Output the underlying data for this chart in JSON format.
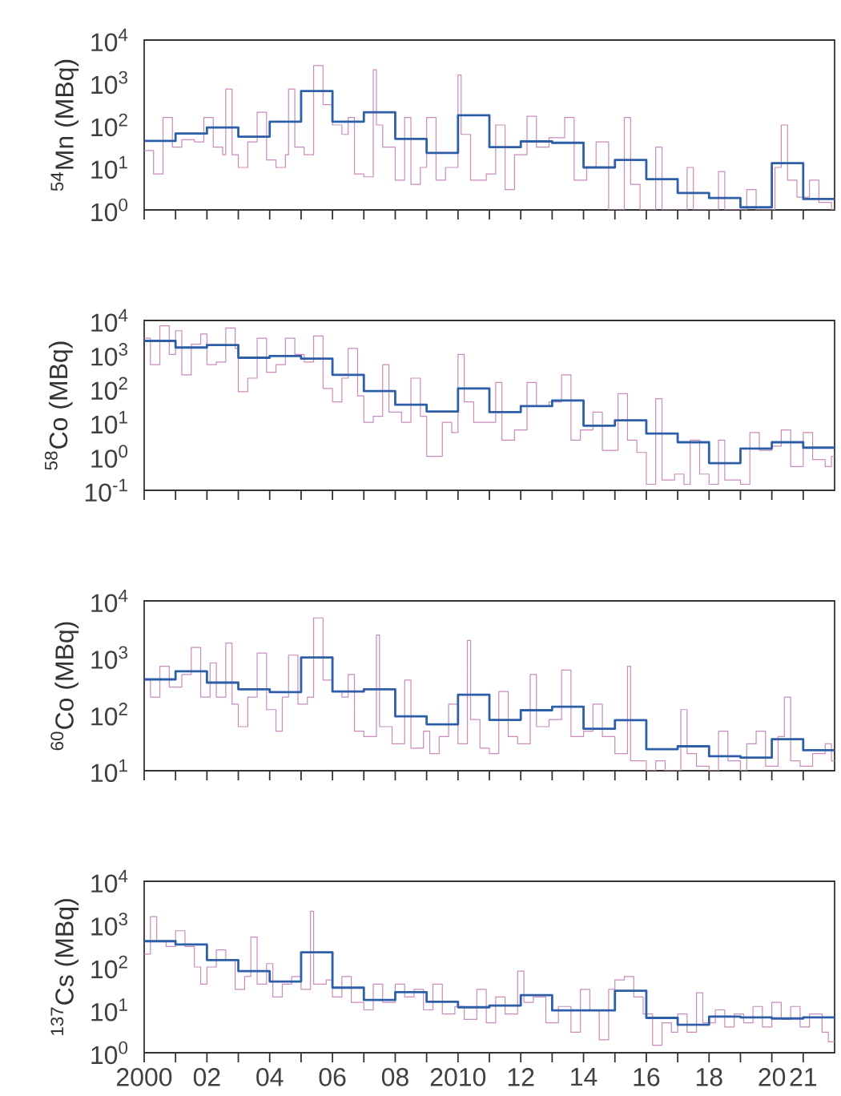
{
  "chart_data": [
    {
      "type": "step",
      "ylabel": "$^{54}$Mn (MBq)",
      "log": "y",
      "xlim": [
        2000,
        2022
      ],
      "ylim": [
        1,
        10000
      ],
      "tick_labels": "y",
      "xticks": [
        {
          "value": 2000,
          "label": null
        },
        {
          "value": 2001,
          "label": null
        },
        {
          "value": 2002,
          "label": null
        },
        {
          "value": 2003,
          "label": null
        },
        {
          "value": 2004,
          "label": null
        },
        {
          "value": 2005,
          "label": null
        },
        {
          "value": 2006,
          "label": null
        },
        {
          "value": 2007,
          "label": null
        },
        {
          "value": 2008,
          "label": null
        },
        {
          "value": 2009,
          "label": null
        },
        {
          "value": 2010,
          "label": null
        },
        {
          "value": 2011,
          "label": null
        },
        {
          "value": 2012,
          "label": null
        },
        {
          "value": 2013,
          "label": null
        },
        {
          "value": 2014,
          "label": null
        },
        {
          "value": 2015,
          "label": null
        },
        {
          "value": 2016,
          "label": null
        },
        {
          "value": 2017,
          "label": null
        },
        {
          "value": 2018,
          "label": null
        },
        {
          "value": 2019,
          "label": null
        },
        {
          "value": 2020,
          "label": null
        },
        {
          "value": 2021,
          "label": null
        }
      ],
      "yticks": [
        {
          "value": 1,
          "label": "10$^{0}$"
        },
        {
          "value": 10,
          "label": "10$^{1}$"
        },
        {
          "value": 100,
          "label": "10$^{2}$"
        },
        {
          "value": 1000,
          "label": "10$^{3}$"
        },
        {
          "value": 10000,
          "label": "10$^{4}$"
        }
      ],
      "series": [
        {
          "color": "#c98bbd",
          "x": [
            2000,
            2000.3,
            2000.6,
            2000.9,
            2001.2,
            2001.6,
            2001.9,
            2002.2,
            2002.5,
            2002.6,
            2002.8,
            2003.0,
            2003.3,
            2003.6,
            2003.9,
            2004.2,
            2004.5,
            2004.6,
            2004.8,
            2005.1,
            2005.4,
            2005.7,
            2006.0,
            2006.3,
            2006.5,
            2006.7,
            2007.0,
            2007.3,
            2007.4,
            2007.6,
            2008.0,
            2008.3,
            2008.5,
            2008.8,
            2009.0,
            2009.3,
            2009.6,
            2010.0,
            2010.1,
            2010.4,
            2010.9,
            2011.2,
            2011.5,
            2011.8,
            2012.2,
            2012.5,
            2012.9,
            2013.4,
            2013.7,
            2014.1,
            2014.4,
            2014.8,
            2015.3,
            2015.5,
            2015.8,
            2016.3,
            2016.5,
            2017.3,
            2017.5,
            2018.3,
            2018.5,
            2019.2,
            2019.5,
            2020.1,
            2020.3,
            2020.5,
            2020.8,
            2021.2,
            2021.5,
            2021.9,
            2022
          ],
          "values": [
            25,
            7,
            150,
            30,
            45,
            40,
            150,
            30,
            20,
            700,
            20,
            10,
            40,
            200,
            15,
            10,
            20,
            700,
            30,
            20,
            2500,
            300,
            100,
            60,
            150,
            7,
            6,
            2000,
            100,
            30,
            5,
            150,
            4,
            10,
            150,
            5,
            10,
            1500,
            60,
            5,
            7,
            100,
            3,
            20,
            160,
            30,
            50,
            150,
            5,
            10,
            40,
            1,
            150,
            4,
            1,
            30,
            1,
            10,
            1,
            8,
            1,
            3,
            1,
            10,
            100,
            5,
            2,
            5,
            1.5,
            1,
            1
          ]
        },
        {
          "color": "#2e5ea8",
          "x": [
            2000,
            2001,
            2002,
            2003,
            2004,
            2005,
            2006,
            2007,
            2008,
            2009,
            2010,
            2011,
            2012,
            2013,
            2014,
            2015,
            2016,
            2017,
            2018,
            2019,
            2020,
            2021,
            2022
          ],
          "values": [
            42,
            63,
            87,
            53,
            120,
            630,
            120,
            200,
            47,
            22,
            170,
            30,
            41,
            38,
            10,
            15,
            5.3,
            2.5,
            1.9,
            1.15,
            12.6,
            1.8,
            1.8
          ]
        }
      ]
    },
    {
      "type": "step",
      "ylabel": "$^{58}$Co (MBq)",
      "log": "y",
      "xlim": [
        2000,
        2022
      ],
      "ylim": [
        0.1,
        10000
      ],
      "tick_labels": "y",
      "xticks": [
        {
          "value": 2000,
          "label": null
        },
        {
          "value": 2001,
          "label": null
        },
        {
          "value": 2002,
          "label": null
        },
        {
          "value": 2003,
          "label": null
        },
        {
          "value": 2004,
          "label": null
        },
        {
          "value": 2005,
          "label": null
        },
        {
          "value": 2006,
          "label": null
        },
        {
          "value": 2007,
          "label": null
        },
        {
          "value": 2008,
          "label": null
        },
        {
          "value": 2009,
          "label": null
        },
        {
          "value": 2010,
          "label": null
        },
        {
          "value": 2011,
          "label": null
        },
        {
          "value": 2012,
          "label": null
        },
        {
          "value": 2013,
          "label": null
        },
        {
          "value": 2014,
          "label": null
        },
        {
          "value": 2015,
          "label": null
        },
        {
          "value": 2016,
          "label": null
        },
        {
          "value": 2017,
          "label": null
        },
        {
          "value": 2018,
          "label": null
        },
        {
          "value": 2019,
          "label": null
        },
        {
          "value": 2020,
          "label": null
        },
        {
          "value": 2021,
          "label": null
        }
      ],
      "yticks": [
        {
          "value": 0.1,
          "label": "10$^{-1}$"
        },
        {
          "value": 1,
          "label": "10$^{0}$"
        },
        {
          "value": 10,
          "label": "10$^{1}$"
        },
        {
          "value": 100,
          "label": "10$^{2}$"
        },
        {
          "value": 1000,
          "label": "10$^{3}$"
        },
        {
          "value": 10000,
          "label": "10$^{4}$"
        }
      ],
      "series": [
        {
          "color": "#c98bbd",
          "x": [
            2000,
            2000.2,
            2000.5,
            2000.8,
            2001.0,
            2001.2,
            2001.5,
            2001.8,
            2002.0,
            2002.3,
            2002.6,
            2002.9,
            2003.0,
            2003.3,
            2003.6,
            2003.9,
            2004.2,
            2004.5,
            2004.8,
            2005.1,
            2005.4,
            2005.7,
            2006.0,
            2006.3,
            2006.5,
            2006.8,
            2007.0,
            2007.3,
            2007.6,
            2007.8,
            2008.2,
            2008.5,
            2008.8,
            2009.0,
            2009.5,
            2009.8,
            2010.0,
            2010.2,
            2010.5,
            2010.9,
            2011.2,
            2011.4,
            2011.8,
            2012.2,
            2012.5,
            2012.9,
            2013.3,
            2013.6,
            2013.9,
            2014.3,
            2014.6,
            2015.1,
            2015.4,
            2015.7,
            2016.0,
            2016.3,
            2016.5,
            2016.9,
            2017.2,
            2017.4,
            2017.7,
            2018.0,
            2018.3,
            2018.5,
            2019.0,
            2019.3,
            2019.6,
            2020.0,
            2020.3,
            2020.6,
            2021.0,
            2021.3,
            2021.7,
            2021.9,
            2022
          ],
          "values": [
            3000,
            500,
            7000,
            1000,
            5000,
            250,
            2000,
            4000,
            500,
            600,
            6000,
            1500,
            80,
            200,
            3000,
            300,
            500,
            3000,
            1000,
            600,
            3500,
            100,
            40,
            200,
            1500,
            60,
            10,
            15,
            500,
            20,
            10,
            200,
            15,
            1,
            10,
            5,
            1000,
            40,
            10,
            10,
            150,
            3,
            6,
            150,
            30,
            40,
            250,
            3,
            6,
            20,
            1.5,
            70,
            3,
            1.3,
            0.15,
            50,
            0.2,
            0.3,
            0.15,
            3,
            0.3,
            0.15,
            3,
            0.2,
            0.15,
            5,
            1.5,
            2,
            6,
            0.5,
            5,
            0.8,
            0.5,
            1,
            1
          ]
        },
        {
          "color": "#2e5ea8",
          "x": [
            2000,
            2001,
            2002,
            2003,
            2004,
            2005,
            2006,
            2007,
            2008,
            2009,
            2010,
            2011,
            2012,
            2013,
            2014,
            2015,
            2016,
            2017,
            2018,
            2019,
            2020,
            2021,
            2022
          ],
          "values": [
            2500,
            1600,
            1900,
            800,
            900,
            750,
            250,
            83,
            33,
            21,
            100,
            20,
            30,
            44,
            8,
            11.5,
            4.7,
            2.6,
            0.63,
            1.7,
            2.6,
            1.8,
            1.8
          ]
        }
      ]
    },
    {
      "type": "step",
      "ylabel": "$^{60}$Co (MBq)",
      "log": "y",
      "xlim": [
        2000,
        2022
      ],
      "ylim": [
        10,
        10000
      ],
      "tick_labels": "y",
      "xticks": [
        {
          "value": 2000,
          "label": null
        },
        {
          "value": 2001,
          "label": null
        },
        {
          "value": 2002,
          "label": null
        },
        {
          "value": 2003,
          "label": null
        },
        {
          "value": 2004,
          "label": null
        },
        {
          "value": 2005,
          "label": null
        },
        {
          "value": 2006,
          "label": null
        },
        {
          "value": 2007,
          "label": null
        },
        {
          "value": 2008,
          "label": null
        },
        {
          "value": 2009,
          "label": null
        },
        {
          "value": 2010,
          "label": null
        },
        {
          "value": 2011,
          "label": null
        },
        {
          "value": 2012,
          "label": null
        },
        {
          "value": 2013,
          "label": null
        },
        {
          "value": 2014,
          "label": null
        },
        {
          "value": 2015,
          "label": null
        },
        {
          "value": 2016,
          "label": null
        },
        {
          "value": 2017,
          "label": null
        },
        {
          "value": 2018,
          "label": null
        },
        {
          "value": 2019,
          "label": null
        },
        {
          "value": 2020,
          "label": null
        },
        {
          "value": 2021,
          "label": null
        }
      ],
      "yticks": [
        {
          "value": 10,
          "label": "10$^{1}$"
        },
        {
          "value": 100,
          "label": "10$^{2}$"
        },
        {
          "value": 1000,
          "label": "10$^{3}$"
        },
        {
          "value": 10000,
          "label": "10$^{4}$"
        }
      ],
      "series": [
        {
          "color": "#c98bbd",
          "x": [
            2000,
            2000.2,
            2000.5,
            2000.8,
            2001.2,
            2001.5,
            2001.8,
            2002.1,
            2002.3,
            2002.6,
            2002.8,
            2003.0,
            2003.3,
            2003.6,
            2003.9,
            2004.2,
            2004.4,
            2004.6,
            2004.9,
            2005.2,
            2005.4,
            2005.7,
            2006.0,
            2006.3,
            2006.5,
            2006.7,
            2007.0,
            2007.4,
            2007.5,
            2007.9,
            2008.3,
            2008.5,
            2008.9,
            2009.1,
            2009.4,
            2009.7,
            2010.0,
            2010.3,
            2010.4,
            2010.7,
            2011.0,
            2011.3,
            2011.6,
            2011.9,
            2012.3,
            2012.5,
            2012.9,
            2013.3,
            2013.6,
            2014.0,
            2014.3,
            2014.6,
            2015.0,
            2015.4,
            2015.5,
            2016.0,
            2016.3,
            2016.6,
            2017.1,
            2017.3,
            2017.6,
            2018.0,
            2018.3,
            2018.6,
            2019.0,
            2019.2,
            2019.5,
            2019.8,
            2020.2,
            2020.4,
            2020.6,
            2020.9,
            2021.3,
            2021.7,
            2021.9,
            2022
          ],
          "values": [
            400,
            200,
            700,
            300,
            500,
            1500,
            200,
            800,
            200,
            1800,
            150,
            60,
            200,
            1200,
            120,
            50,
            200,
            1100,
            150,
            200,
            5000,
            400,
            250,
            200,
            500,
            50,
            40,
            2500,
            60,
            30,
            400,
            25,
            50,
            20,
            40,
            150,
            30,
            2000,
            80,
            25,
            20,
            250,
            40,
            30,
            500,
            60,
            80,
            600,
            40,
            50,
            150,
            40,
            20,
            700,
            15,
            10,
            15,
            10,
            120,
            20,
            12,
            10,
            50,
            15,
            10,
            30,
            50,
            12,
            40,
            200,
            15,
            12,
            20,
            30,
            15,
            15
          ]
        },
        {
          "color": "#2e5ea8",
          "x": [
            2000,
            2001,
            2002,
            2003,
            2004,
            2005,
            2006,
            2007,
            2008,
            2009,
            2010,
            2011,
            2012,
            2013,
            2014,
            2015,
            2016,
            2017,
            2018,
            2019,
            2020,
            2021,
            2022
          ],
          "values": [
            410,
            570,
            360,
            275,
            245,
            1000,
            250,
            275,
            91,
            66,
            220,
            79,
            117,
            135,
            55,
            78,
            24,
            27,
            18,
            17,
            36,
            23,
            23
          ]
        }
      ]
    },
    {
      "type": "step",
      "ylabel": "$^{137}$Cs (MBq)",
      "log": "y",
      "xlim": [
        2000,
        2022
      ],
      "ylim": [
        1,
        10000
      ],
      "xticks": [
        {
          "value": 2000,
          "label": "2000"
        },
        {
          "value": 2001,
          "label": null
        },
        {
          "value": 2002,
          "label": "02"
        },
        {
          "value": 2003,
          "label": null
        },
        {
          "value": 2004,
          "label": "04"
        },
        {
          "value": 2005,
          "label": null
        },
        {
          "value": 2006,
          "label": "06"
        },
        {
          "value": 2007,
          "label": null
        },
        {
          "value": 2008,
          "label": "08"
        },
        {
          "value": 2009,
          "label": null
        },
        {
          "value": 2010,
          "label": "2010"
        },
        {
          "value": 2011,
          "label": null
        },
        {
          "value": 2012,
          "label": "12"
        },
        {
          "value": 2013,
          "label": null
        },
        {
          "value": 2014,
          "label": "14"
        },
        {
          "value": 2015,
          "label": null
        },
        {
          "value": 2016,
          "label": "16"
        },
        {
          "value": 2017,
          "label": null
        },
        {
          "value": 2018,
          "label": "18"
        },
        {
          "value": 2019,
          "label": null
        },
        {
          "value": 2020,
          "label": "20"
        },
        {
          "value": 2021,
          "label": "21"
        }
      ],
      "yticks": [
        {
          "value": 1,
          "label": "10$^{0}$"
        },
        {
          "value": 10,
          "label": "10$^{1}$"
        },
        {
          "value": 100,
          "label": "10$^{2}$"
        },
        {
          "value": 1000,
          "label": "10$^{3}$"
        },
        {
          "value": 10000,
          "label": "10$^{4}$"
        }
      ],
      "series": [
        {
          "color": "#c98bbd",
          "x": [
            2000,
            2000.2,
            2000.4,
            2000.7,
            2001.0,
            2001.3,
            2001.6,
            2001.8,
            2002.0,
            2002.3,
            2002.6,
            2002.9,
            2003.2,
            2003.4,
            2003.6,
            2003.9,
            2004.1,
            2004.4,
            2004.7,
            2005.0,
            2005.3,
            2005.4,
            2005.8,
            2006.0,
            2006.3,
            2006.6,
            2007.0,
            2007.3,
            2007.6,
            2008.0,
            2008.3,
            2008.6,
            2008.9,
            2009.2,
            2009.5,
            2009.9,
            2010.2,
            2010.6,
            2010.9,
            2011.2,
            2011.5,
            2011.9,
            2012.1,
            2012.4,
            2012.8,
            2013.2,
            2013.6,
            2013.9,
            2014.2,
            2014.5,
            2014.8,
            2015.0,
            2015.3,
            2015.6,
            2015.9,
            2016.2,
            2016.5,
            2016.8,
            2017.0,
            2017.3,
            2017.6,
            2017.8,
            2018.2,
            2018.5,
            2018.8,
            2019.1,
            2019.4,
            2019.7,
            2020.0,
            2020.3,
            2020.6,
            2020.9,
            2021.2,
            2021.6,
            2021.8,
            2022
          ],
          "values": [
            200,
            1500,
            400,
            300,
            700,
            300,
            100,
            40,
            100,
            250,
            150,
            30,
            60,
            500,
            40,
            120,
            20,
            40,
            60,
            30,
            2000,
            40,
            50,
            20,
            60,
            15,
            10,
            40,
            15,
            40,
            20,
            30,
            10,
            40,
            8,
            12,
            6,
            30,
            5,
            20,
            8,
            80,
            15,
            20,
            5,
            12,
            3,
            30,
            10,
            2,
            30,
            50,
            60,
            20,
            8,
            1.5,
            5,
            3,
            8,
            3,
            25,
            5,
            10,
            4,
            8,
            5,
            12,
            4,
            15,
            6,
            12,
            4,
            8,
            3,
            1.8,
            1.8
          ]
        },
        {
          "color": "#2e5ea8",
          "x": [
            2000,
            2001,
            2002,
            2003,
            2004,
            2005,
            2006,
            2007,
            2008,
            2009,
            2010,
            2011,
            2012,
            2013,
            2014,
            2015,
            2016,
            2017,
            2018,
            2019,
            2020,
            2021,
            2022
          ],
          "values": [
            400,
            335,
            145,
            80,
            46,
            220,
            33,
            17,
            26,
            15.4,
            11.5,
            12.6,
            22,
            9.7,
            9.7,
            28,
            6.5,
            4.5,
            7,
            6.7,
            6.3,
            6.7,
            6.7
          ]
        }
      ]
    }
  ]
}
